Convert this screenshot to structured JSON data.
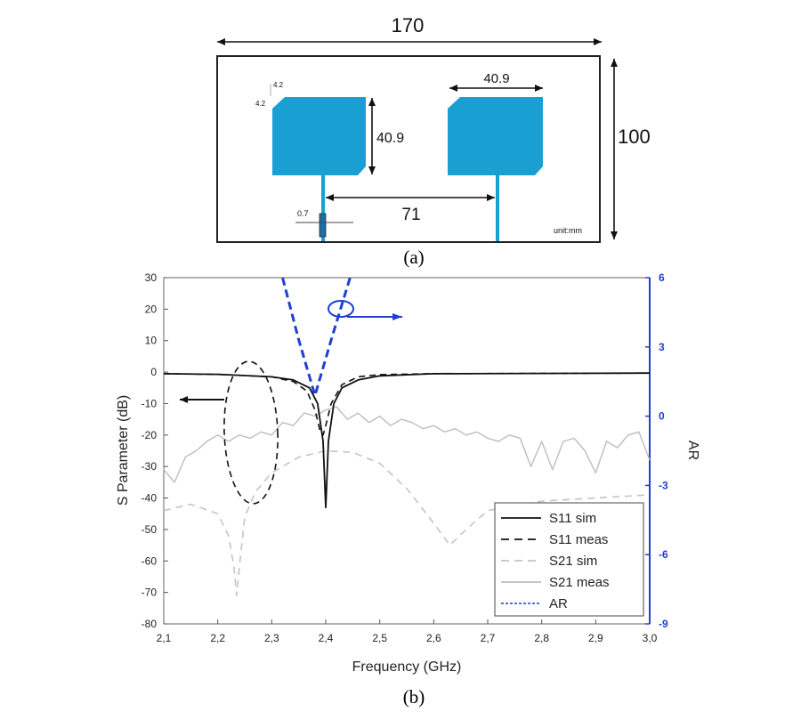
{
  "colors": {
    "patch": "#1a9fd3",
    "ar": "#1f3fd0",
    "sim": "#111111",
    "s21": "#bdbdbd"
  },
  "figure_a": {
    "board_width": "170",
    "board_height": "100",
    "patch_size_right": "40.9",
    "patch_size_left": "40.9",
    "spacing": "71",
    "feed_width": "0.7",
    "chamfer_a": "4.2",
    "chamfer_b": "4.2",
    "unit": "unit:mm",
    "caption": "(a)"
  },
  "figure_b": {
    "caption": "(b)"
  },
  "chart_data": {
    "type": "line",
    "xlabel": "Frequency (GHz)",
    "ylabel": "S Parameter (dB)",
    "y2label": "AR",
    "xlim": [
      2.1,
      3.0
    ],
    "ylim": [
      -80,
      30
    ],
    "y2lim": [
      -9,
      6
    ],
    "x_ticks": [
      "2,1",
      "2,2",
      "2,3",
      "2,4",
      "2,5",
      "2,6",
      "2,7",
      "2,8",
      "2,9",
      "3,0"
    ],
    "y_ticks": [
      "30",
      "20",
      "10",
      "0",
      "-10",
      "-20",
      "-30",
      "-40",
      "-50",
      "-60",
      "-70",
      "-80"
    ],
    "y2_ticks": [
      "6",
      "3",
      "0",
      "-3",
      "-6",
      "-9"
    ],
    "legend_position": "bottom-right",
    "series": [
      {
        "name": "S11 sim",
        "axis": "left",
        "x": [
          2.1,
          2.2,
          2.3,
          2.34,
          2.37,
          2.385,
          2.395,
          2.4,
          2.405,
          2.415,
          2.43,
          2.46,
          2.5,
          2.6,
          3.0
        ],
        "y": [
          -0.5,
          -0.7,
          -1.5,
          -2.5,
          -5,
          -10,
          -22,
          -43,
          -22,
          -10,
          -5,
          -2.5,
          -1.2,
          -0.5,
          -0.3
        ]
      },
      {
        "name": "S11 meas",
        "axis": "left",
        "x": [
          2.1,
          2.2,
          2.3,
          2.34,
          2.365,
          2.38,
          2.39,
          2.395,
          2.4,
          2.41,
          2.43,
          2.46,
          2.5,
          2.6,
          3.0
        ],
        "y": [
          -0.5,
          -0.7,
          -1.5,
          -3,
          -6,
          -12,
          -19,
          -20,
          -17,
          -10,
          -4,
          -1.5,
          -0.8,
          -0.5,
          -0.3
        ]
      },
      {
        "name": "S21 sim",
        "axis": "left",
        "x": [
          2.1,
          2.15,
          2.2,
          2.22,
          2.23,
          2.235,
          2.24,
          2.25,
          2.27,
          2.3,
          2.35,
          2.4,
          2.45,
          2.5,
          2.55,
          2.6,
          2.63,
          2.66,
          2.7,
          2.8,
          2.9,
          3.0
        ],
        "y": [
          -44,
          -42,
          -45,
          -52,
          -62,
          -71,
          -62,
          -46,
          -38,
          -32,
          -27,
          -25,
          -25.5,
          -29,
          -37,
          -48,
          -55,
          -50,
          -44,
          -41,
          -40,
          -39
        ]
      },
      {
        "name": "S21 meas",
        "axis": "left",
        "x": [
          2.1,
          2.12,
          2.14,
          2.16,
          2.18,
          2.2,
          2.22,
          2.24,
          2.26,
          2.28,
          2.3,
          2.32,
          2.34,
          2.36,
          2.38,
          2.4,
          2.42,
          2.44,
          2.46,
          2.48,
          2.5,
          2.52,
          2.54,
          2.56,
          2.58,
          2.6,
          2.62,
          2.64,
          2.66,
          2.68,
          2.7,
          2.72,
          2.74,
          2.76,
          2.78,
          2.8,
          2.82,
          2.84,
          2.86,
          2.88,
          2.9,
          2.92,
          2.94,
          2.96,
          2.98,
          3.0
        ],
        "y": [
          -31,
          -35,
          -27,
          -25,
          -22,
          -20,
          -22,
          -20,
          -21,
          -19,
          -20,
          -16,
          -17,
          -13,
          -14,
          -12,
          -11,
          -15,
          -13,
          -16,
          -14,
          -17,
          -15,
          -16,
          -18,
          -17,
          -19,
          -18,
          -20,
          -19,
          -21,
          -22,
          -20,
          -21,
          -30,
          -22,
          -31,
          -22,
          -21,
          -25,
          -32,
          -22,
          -24,
          -20,
          -19,
          -28
        ]
      },
      {
        "name": "AR",
        "axis": "right",
        "x": [
          2.32,
          2.35,
          2.38,
          2.41,
          2.445
        ],
        "y": [
          6,
          3.3,
          0.9,
          3.3,
          6
        ]
      }
    ],
    "annotations": [
      {
        "type": "ellipse",
        "note": "circles S11 curves, arrow to left axis"
      },
      {
        "type": "ellipse",
        "note": "circles AR curve, arrow to right axis"
      }
    ]
  }
}
